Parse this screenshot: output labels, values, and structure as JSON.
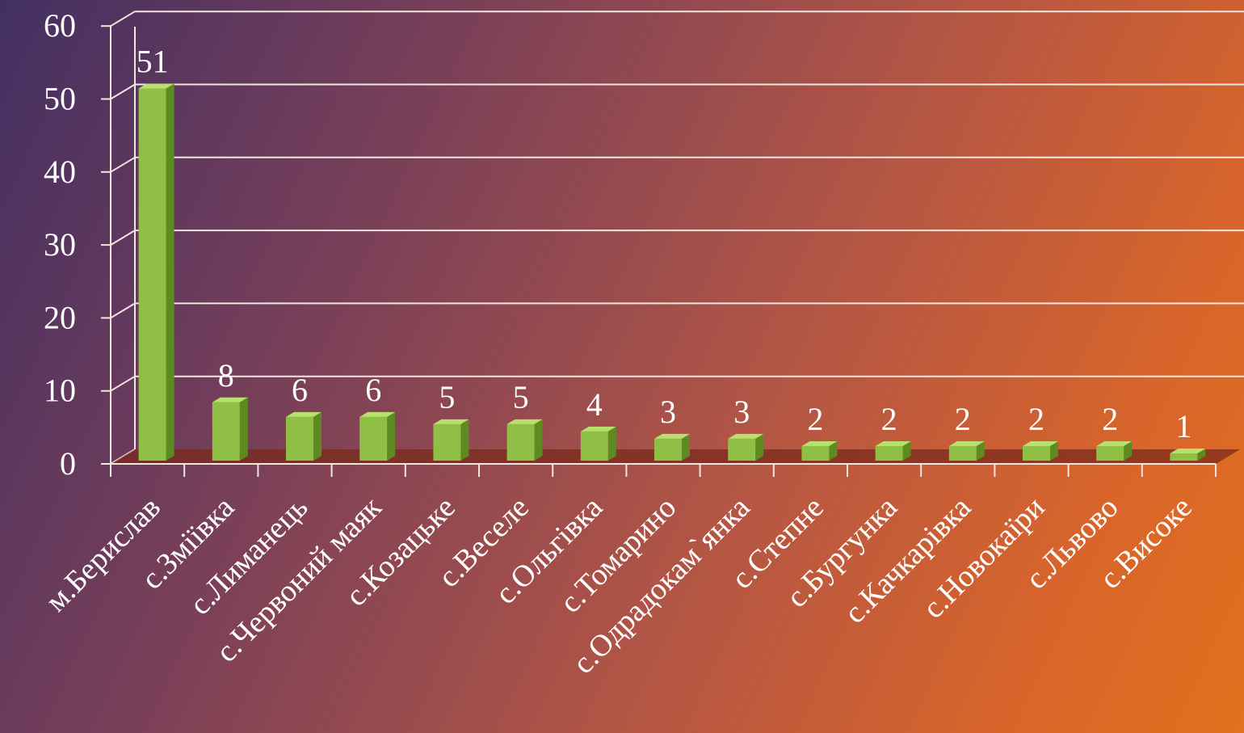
{
  "chart_data": {
    "type": "bar",
    "categories": [
      "м.Берислав",
      "с.Зміївка",
      "с.Лиманець",
      "с.Червоний маяк",
      "с.Козацьке",
      "с.Веселе",
      "с.Ольгівка",
      "с.Томарино",
      "с.Одрадокам`янка",
      "с.Степне",
      "с.Бургунка",
      "с.Качкарівка",
      "с.Новокаїри",
      "с.Львово",
      "с.Високе"
    ],
    "values": [
      51,
      8,
      6,
      6,
      5,
      5,
      4,
      3,
      3,
      2,
      2,
      2,
      2,
      2,
      1
    ],
    "ylim": [
      0,
      60
    ],
    "yticks": [
      "0",
      "10",
      "20",
      "30",
      "40",
      "50",
      "60"
    ],
    "grid": true,
    "title": "",
    "xlabel": "",
    "ylabel": "",
    "colors": {
      "bar_front": "#8fbf45",
      "bar_side": "#5e8a22",
      "bar_top": "#b7e06c",
      "floor": "#7a2a1c",
      "gridline": "#f2e6e0",
      "text": "#ffffff"
    }
  }
}
